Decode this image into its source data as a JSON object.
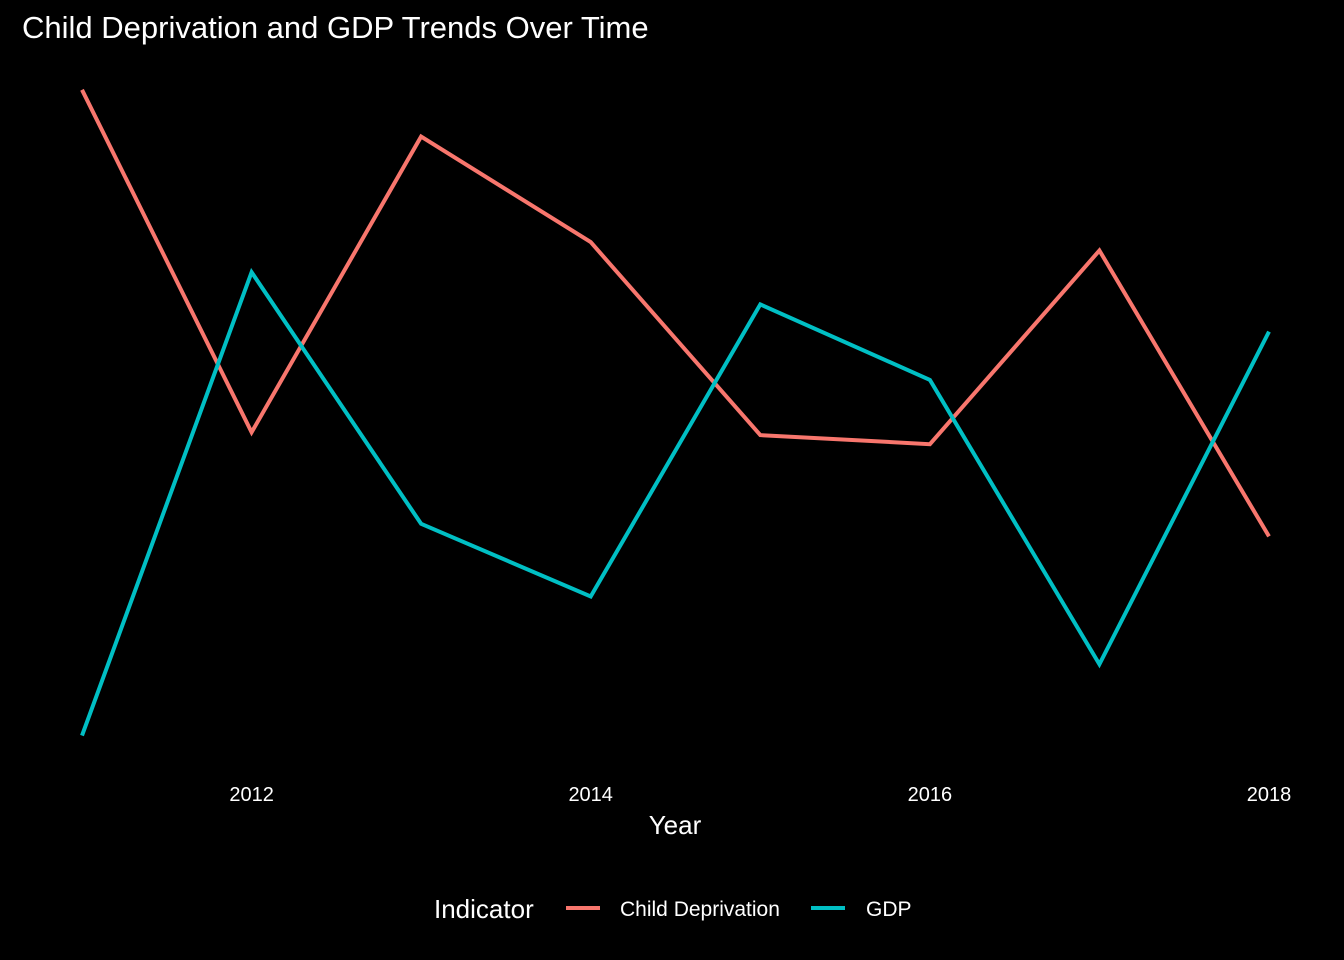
{
  "chart_data": {
    "type": "line",
    "title": "Child Deprivation and GDP Trends Over Time",
    "xlabel": "Year",
    "ylabel": "",
    "x": [
      2011,
      2012,
      2013,
      2014,
      2015,
      2016,
      2017,
      2018
    ],
    "x_ticks": [
      "2012",
      "2014",
      "2016",
      "2018"
    ],
    "xlim": [
      2011,
      2018
    ],
    "y_axis_shown": false,
    "grid": false,
    "legend": {
      "title": "Indicator",
      "position": "bottom"
    },
    "series": [
      {
        "name": "Child Deprivation",
        "color": "#F8766D",
        "values": [
          0.966,
          0.476,
          0.899,
          0.748,
          0.472,
          0.459,
          0.736,
          0.327
        ]
      },
      {
        "name": "GDP",
        "color": "#00BFC4",
        "values": [
          0.042,
          0.705,
          0.345,
          0.241,
          0.659,
          0.551,
          0.144,
          0.62
        ]
      }
    ]
  }
}
